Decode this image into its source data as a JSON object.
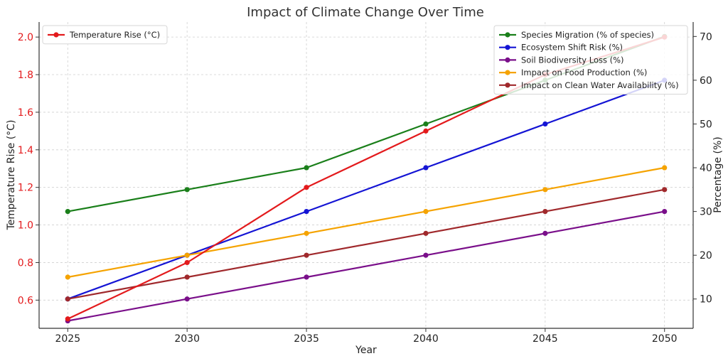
{
  "chart_data": {
    "type": "line",
    "title": "Impact of Climate Change Over Time",
    "xlabel": "Year",
    "ylabel_left": "Temperature Rise (°C)",
    "ylabel_right": "Percentage (%)",
    "x": [
      2025,
      2030,
      2035,
      2040,
      2045,
      2050
    ],
    "x_ticks": [
      "2025",
      "2030",
      "2035",
      "2040",
      "2045",
      "2050"
    ],
    "ylim_left": [
      0.45,
      2.08
    ],
    "ylim_right": [
      3.3,
      73.3
    ],
    "yticks_left": [
      "0.6",
      "0.8",
      "1.0",
      "1.2",
      "1.4",
      "1.6",
      "1.8",
      "2.0"
    ],
    "yticks_left_values": [
      0.6,
      0.8,
      1.0,
      1.2,
      1.4,
      1.6,
      1.8,
      2.0
    ],
    "yticks_right": [
      "10",
      "20",
      "30",
      "40",
      "50",
      "60",
      "70"
    ],
    "yticks_right_values": [
      10,
      20,
      30,
      40,
      50,
      60,
      70
    ],
    "grid": true,
    "left_axis_color": "#e31a1c",
    "legend_left_placement": "top-left",
    "legend_right_placement": "top-right",
    "series_left": [
      {
        "name": "Temperature Rise (°C)",
        "color": "#e31a1c",
        "values": [
          0.5,
          0.8,
          1.2,
          1.5,
          1.8,
          2.0
        ]
      }
    ],
    "series_right": [
      {
        "name": "Species Migration (% of species)",
        "color": "#1a7f1a",
        "values": [
          30,
          35,
          40,
          50,
          60,
          70
        ]
      },
      {
        "name": "Ecosystem Shift Risk (%)",
        "color": "#1414d4",
        "values": [
          10,
          20,
          30,
          40,
          50,
          60
        ]
      },
      {
        "name": "Soil Biodiversity Loss (%)",
        "color": "#7a0f8a",
        "values": [
          5,
          10,
          15,
          20,
          25,
          30
        ]
      },
      {
        "name": "Impact on Food Production (%)",
        "color": "#f5a300",
        "values": [
          15,
          20,
          25,
          30,
          35,
          40
        ]
      },
      {
        "name": "Impact on Clean Water Availability (%)",
        "color": "#a0292c",
        "values": [
          10,
          15,
          20,
          25,
          30,
          35
        ]
      }
    ]
  }
}
